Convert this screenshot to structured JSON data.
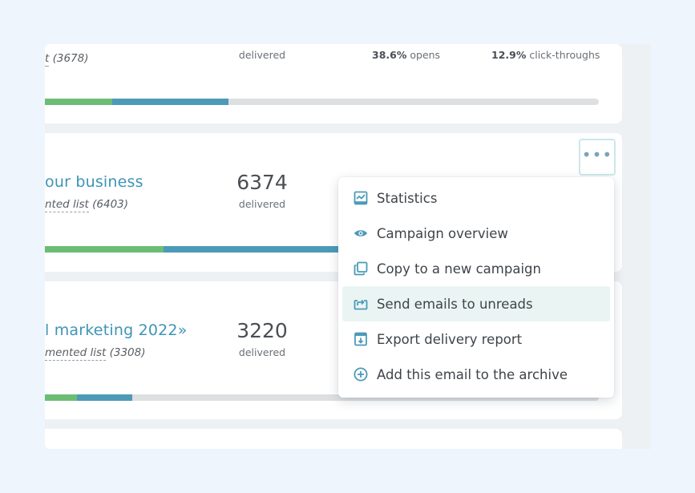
{
  "campaigns": [
    {
      "title": "",
      "list_prefix": "t",
      "list_count": "(3678)",
      "delivered_count": "",
      "delivered_label": "delivered",
      "opens_pct": "38.6%",
      "opens_label": "opens",
      "clicks_pct": "12.9%",
      "clicks_label": "click-throughs",
      "progress_green_pct": 12.2,
      "progress_blue_pct": 33.1
    },
    {
      "title": "our business",
      "list_prefix": "nted list",
      "list_count": "(6403)",
      "delivered_count": "6374",
      "delivered_label": "delivered",
      "progress_green_pct": 21.4,
      "progress_blue_pct": 60.0
    },
    {
      "title": "l marketing 2022»",
      "list_prefix": "mented list",
      "list_count": "(3308)",
      "delivered_count": "3220",
      "delivered_label": "delivered",
      "progress_green_pct": 5.8,
      "progress_blue_pct": 15.8
    }
  ],
  "more_button": {
    "icon": "more-horizontal-icon",
    "label": "•••"
  },
  "menu": {
    "items": [
      {
        "label": "Statistics",
        "icon": "statistics-icon"
      },
      {
        "label": "Campaign overview",
        "icon": "eye-icon"
      },
      {
        "label": "Copy to a new campaign",
        "icon": "copy-icon"
      },
      {
        "label": "Send emails to unreads",
        "icon": "resend-icon",
        "hovered": true
      },
      {
        "label": "Export delivery report",
        "icon": "export-icon"
      },
      {
        "label": "Add this email to the archive",
        "icon": "add-circle-icon"
      }
    ]
  },
  "colors": {
    "accent": "#3e94b6",
    "icon": "#4c9ab8",
    "progress_green": "#6cbd74",
    "progress_blue": "#4c9ab8",
    "progress_track": "#dedfe0",
    "hover_bg": "#eaf5f3"
  }
}
